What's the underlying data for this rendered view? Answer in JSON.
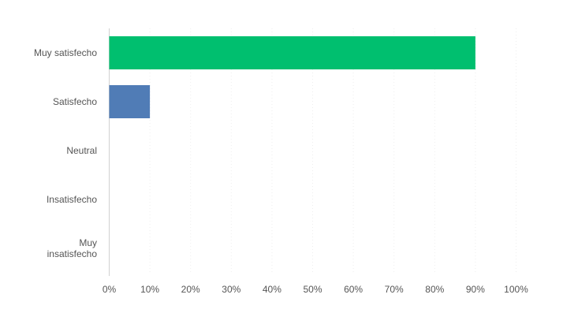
{
  "chart_data": {
    "type": "hbar",
    "categories": [
      "Muy satisfecho",
      "Satisfecho",
      "Neutral",
      "Insatisfecho",
      "Muy insatisfecho"
    ],
    "values": [
      90,
      10,
      0,
      0,
      0
    ],
    "colors": [
      "#00bf6f",
      "#507cb6",
      "#507cb6",
      "#507cb6",
      "#507cb6"
    ],
    "xlim": [
      0,
      100
    ],
    "xticks": [
      {
        "value": 0,
        "label": "0%"
      },
      {
        "value": 10,
        "label": "10%"
      },
      {
        "value": 20,
        "label": "20%"
      },
      {
        "value": 30,
        "label": "30%"
      },
      {
        "value": 40,
        "label": "40%"
      },
      {
        "value": 50,
        "label": "50%"
      },
      {
        "value": 60,
        "label": "60%"
      },
      {
        "value": 70,
        "label": "70%"
      },
      {
        "value": 80,
        "label": "80%"
      },
      {
        "value": 90,
        "label": "90%"
      },
      {
        "value": 100,
        "label": "100%"
      }
    ]
  }
}
